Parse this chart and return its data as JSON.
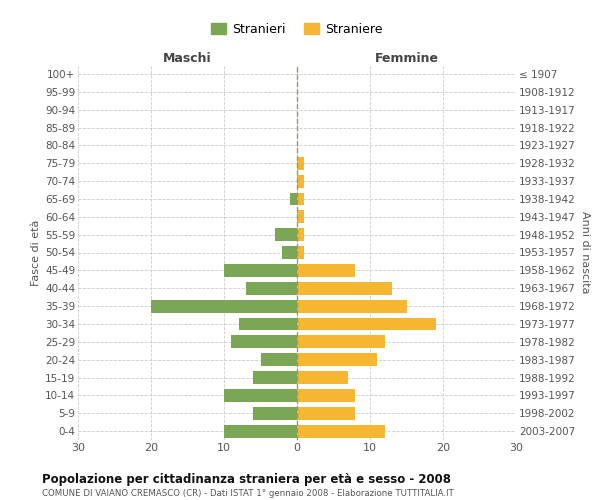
{
  "age_groups": [
    "100+",
    "95-99",
    "90-94",
    "85-89",
    "80-84",
    "75-79",
    "70-74",
    "65-69",
    "60-64",
    "55-59",
    "50-54",
    "45-49",
    "40-44",
    "35-39",
    "30-34",
    "25-29",
    "20-24",
    "15-19",
    "10-14",
    "5-9",
    "0-4"
  ],
  "birth_years": [
    "≤ 1907",
    "1908-1912",
    "1913-1917",
    "1918-1922",
    "1923-1927",
    "1928-1932",
    "1933-1937",
    "1938-1942",
    "1943-1947",
    "1948-1952",
    "1953-1957",
    "1958-1962",
    "1963-1967",
    "1968-1972",
    "1973-1977",
    "1978-1982",
    "1983-1987",
    "1988-1992",
    "1993-1997",
    "1998-2002",
    "2003-2007"
  ],
  "males": [
    0,
    0,
    0,
    0,
    0,
    0,
    0,
    1,
    0,
    3,
    2,
    10,
    7,
    20,
    8,
    9,
    5,
    6,
    10,
    6,
    10
  ],
  "females": [
    0,
    0,
    0,
    0,
    0,
    1,
    1,
    1,
    1,
    1,
    1,
    8,
    13,
    15,
    19,
    12,
    11,
    7,
    8,
    8,
    12
  ],
  "male_color": "#7aa655",
  "female_color": "#f5b731",
  "title": "Popolazione per cittadinanza straniera per età e sesso - 2008",
  "subtitle": "COMUNE DI VAIANO CREMASCO (CR) - Dati ISTAT 1° gennaio 2008 - Elaborazione TUTTITALIA.IT",
  "xlabel_left": "Maschi",
  "xlabel_right": "Femmine",
  "ylabel_left": "Fasce di età",
  "ylabel_right": "Anni di nascita",
  "legend_male": "Stranieri",
  "legend_female": "Straniere",
  "xlim": 30,
  "background_color": "#ffffff",
  "grid_color": "#cccccc"
}
